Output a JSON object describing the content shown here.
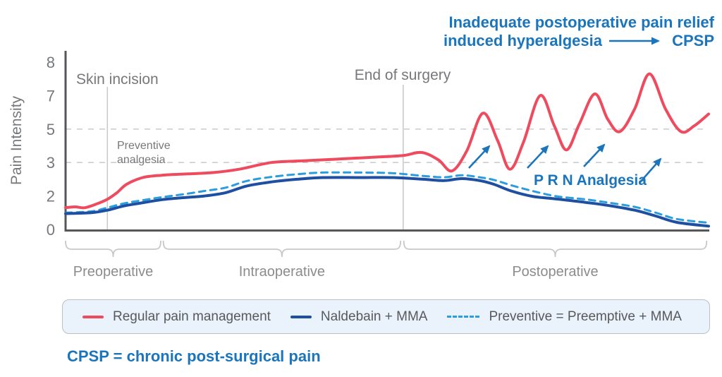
{
  "figure": {
    "y_axis_label": "Pain Intensity",
    "annotations": {
      "preventive_line1": "Preventive",
      "preventive_line2": "analgesia",
      "prn": "P R N Analgesia",
      "hyper_line1": "Inadequate postoperative pain relief",
      "hyper_line2": "induced hyperalgesia",
      "hyper_target": "CPSP"
    },
    "footnote": "CPSP = chronic post-surgical pain",
    "colors": {
      "regular_line": "#ef4b5f",
      "naldebain_line": "#1e4fa1",
      "preventive_line": "#2b9ddf",
      "accent_blue": "#1b75bc",
      "axis_gray": "#55565a",
      "text_gray": "#77787b",
      "grid_gray": "#cdced0",
      "legend_bg": "#eaf3fb"
    }
  },
  "chart_data": {
    "type": "line",
    "title": "",
    "xlabel": "",
    "ylabel": "Pain Intensity",
    "ylim": [
      0,
      8
    ],
    "y_ticks": [
      0,
      2,
      3,
      5,
      7,
      8
    ],
    "grid_values": [
      3,
      5
    ],
    "grid_style": "dashed horizontal",
    "legend_position": "bottom box",
    "x_axis_note": "unlabeled time axis; x values below are percent across the plot",
    "events": [
      {
        "label": "Skin incision",
        "x": 6.5
      },
      {
        "label": "End of surgery",
        "x": 52.5
      }
    ],
    "phases": [
      {
        "label": "Preoperative",
        "x_start": 0,
        "x_end": 14.8
      },
      {
        "label": "Intraoperative",
        "x_start": 15.2,
        "x_end": 52.1
      },
      {
        "label": "Postoperative",
        "x_start": 52.6,
        "x_end": 99.7
      }
    ],
    "series": [
      {
        "name": "Regular pain management",
        "color": "#ef4b5f",
        "style": "solid",
        "width": 4,
        "points": [
          [
            0,
            1.3
          ],
          [
            1.5,
            1.35
          ],
          [
            3,
            1.3
          ],
          [
            5,
            1.55
          ],
          [
            6.5,
            1.8
          ],
          [
            8,
            2.1
          ],
          [
            9.5,
            2.35
          ],
          [
            12,
            2.55
          ],
          [
            15,
            2.62
          ],
          [
            19,
            2.66
          ],
          [
            23,
            2.7
          ],
          [
            27,
            2.8
          ],
          [
            32,
            3.0
          ],
          [
            37,
            3.1
          ],
          [
            42,
            3.2
          ],
          [
            48,
            3.32
          ],
          [
            52.5,
            3.42
          ],
          [
            55.4,
            3.6
          ],
          [
            58,
            3.15
          ],
          [
            60.1,
            2.75
          ],
          [
            62.4,
            3.7
          ],
          [
            64.9,
            5.95
          ],
          [
            67.2,
            4.3
          ],
          [
            69.1,
            2.8
          ],
          [
            71.2,
            4.2
          ],
          [
            73.8,
            7.0
          ],
          [
            76,
            5.2
          ],
          [
            77.9,
            3.75
          ],
          [
            79.9,
            5.3
          ],
          [
            82.3,
            7.05
          ],
          [
            84.3,
            5.6
          ],
          [
            86.2,
            4.85
          ],
          [
            88.5,
            6.2
          ],
          [
            90.8,
            7.65
          ],
          [
            93.3,
            6.2
          ],
          [
            95.7,
            4.85
          ],
          [
            97.8,
            5.2
          ],
          [
            100,
            5.9
          ]
        ]
      },
      {
        "name": "Naldebain + MMA",
        "color": "#1e4fa1",
        "style": "solid",
        "width": 4,
        "points": [
          [
            0,
            0.95
          ],
          [
            4,
            1.0
          ],
          [
            6.5,
            1.15
          ],
          [
            9,
            1.4
          ],
          [
            11.7,
            1.58
          ],
          [
            15,
            1.78
          ],
          [
            18.3,
            1.9
          ],
          [
            21.6,
            2.0
          ],
          [
            24.9,
            2.1
          ],
          [
            28.2,
            2.3
          ],
          [
            32,
            2.42
          ],
          [
            36,
            2.5
          ],
          [
            40,
            2.55
          ],
          [
            46,
            2.55
          ],
          [
            51,
            2.55
          ],
          [
            55.6,
            2.5
          ],
          [
            58.9,
            2.46
          ],
          [
            61.6,
            2.52
          ],
          [
            64.4,
            2.46
          ],
          [
            66.6,
            2.35
          ],
          [
            69.3,
            2.15
          ],
          [
            72.6,
            1.98
          ],
          [
            76.4,
            1.82
          ],
          [
            80.8,
            1.62
          ],
          [
            84.1,
            1.45
          ],
          [
            88.5,
            1.15
          ],
          [
            91.8,
            0.8
          ],
          [
            95.1,
            0.42
          ],
          [
            100,
            0.2
          ]
        ]
      },
      {
        "name": "Preventive = Preemptive + MMA",
        "color": "#2b9ddf",
        "style": "dashed",
        "width": 3,
        "points": [
          [
            0,
            1.0
          ],
          [
            4,
            1.08
          ],
          [
            6.5,
            1.3
          ],
          [
            9,
            1.55
          ],
          [
            11.7,
            1.73
          ],
          [
            15,
            1.93
          ],
          [
            18.3,
            2.05
          ],
          [
            21.6,
            2.15
          ],
          [
            24.9,
            2.25
          ],
          [
            28.2,
            2.45
          ],
          [
            32,
            2.57
          ],
          [
            36,
            2.65
          ],
          [
            40,
            2.7
          ],
          [
            46,
            2.7
          ],
          [
            51,
            2.68
          ],
          [
            55.6,
            2.6
          ],
          [
            58.9,
            2.56
          ],
          [
            61.6,
            2.62
          ],
          [
            64.4,
            2.56
          ],
          [
            66.6,
            2.48
          ],
          [
            69.3,
            2.32
          ],
          [
            72.6,
            2.15
          ],
          [
            76.4,
            1.98
          ],
          [
            80.8,
            1.8
          ],
          [
            84.1,
            1.62
          ],
          [
            88.5,
            1.35
          ],
          [
            91.8,
            1.0
          ],
          [
            95.1,
            0.62
          ],
          [
            100,
            0.4
          ]
        ]
      }
    ]
  }
}
